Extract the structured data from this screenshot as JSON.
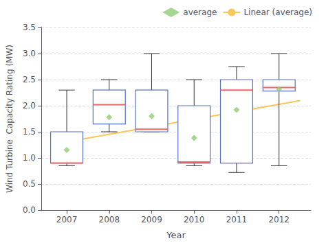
{
  "chart_data": {
    "type": "boxplot",
    "xlabel": "Year",
    "ylabel": "Wind Turbine  Capacity Rating (MW)",
    "x": [
      2007,
      2008,
      2009,
      2010,
      2011,
      2012
    ],
    "boxes": [
      {
        "whisker_low": 0.85,
        "q1": 0.9,
        "median": 0.9,
        "q3": 1.5,
        "whisker_high": 2.3
      },
      {
        "whisker_low": 1.5,
        "q1": 1.65,
        "median": 2.02,
        "q3": 2.3,
        "whisker_high": 2.5
      },
      {
        "whisker_low": 1.5,
        "q1": 1.5,
        "median": 1.55,
        "q3": 2.3,
        "whisker_high": 3.0
      },
      {
        "whisker_low": 0.85,
        "q1": 0.9,
        "median": 0.92,
        "q3": 2.0,
        "whisker_high": 2.5
      },
      {
        "whisker_low": 0.72,
        "q1": 0.9,
        "median": 2.3,
        "q3": 2.5,
        "whisker_high": 2.75
      },
      {
        "whisker_low": 0.85,
        "q1": 2.28,
        "median": 2.35,
        "q3": 2.5,
        "whisker_high": 3.0
      }
    ],
    "series": [
      {
        "name": "average",
        "type": "scatter",
        "marker": "diamond",
        "x": [
          2007,
          2008,
          2009,
          2010,
          2011,
          2012
        ],
        "values": [
          1.15,
          1.78,
          1.8,
          1.38,
          1.92,
          2.32
        ]
      },
      {
        "name": "Linear (average)",
        "type": "line",
        "x": [
          2006.8,
          2012.5
        ],
        "values": [
          1.28,
          2.1
        ]
      }
    ],
    "xlim": [
      2006.4,
      2012.75
    ],
    "xticks": [
      2007,
      2008,
      2009,
      2010,
      2011,
      2012
    ],
    "ylim": [
      0,
      3.5
    ],
    "yticks": [
      {
        "value": 0,
        "label": "0.0"
      },
      0.5,
      {
        "value": 1,
        "label": "1.0"
      },
      1.5,
      {
        "value": 2,
        "label": "2.0"
      },
      2.5,
      {
        "value": 3,
        "label": "3.0"
      },
      3.5
    ],
    "grid": true,
    "legend": "upper right"
  }
}
